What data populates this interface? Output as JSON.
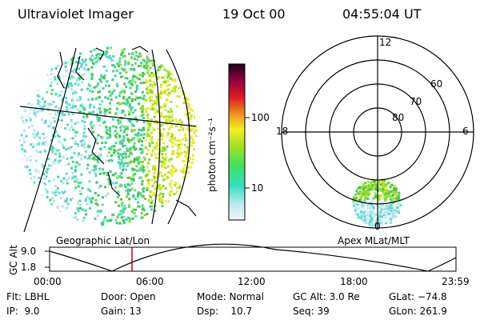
{
  "header": {
    "title": "Ultraviolet Imager",
    "date": "19 Oct 00",
    "time": "04:55:04 UT"
  },
  "colorbar": {
    "unit_label": "photon cm⁻²s⁻¹",
    "ticks": [
      "100",
      "10"
    ]
  },
  "polar": {
    "mlt_labels": {
      "top": "12",
      "left": "18",
      "right": "6",
      "bottom": "0"
    },
    "lat_labels": [
      "60",
      "70",
      "80"
    ]
  },
  "panel_labels": {
    "left": "Geographic Lat/Lon",
    "right": "Apex MLat/MLT"
  },
  "altitude_plot": {
    "ylabel": "GC Alt",
    "yticks": [
      "9.0",
      "1.8"
    ],
    "xticks": [
      "00:00",
      "06:00",
      "12:00",
      "18:00",
      "23:59"
    ],
    "marker_color": "#d00000"
  },
  "info": {
    "row1": {
      "flt": "Flt: LBHL",
      "door": "Door: Open",
      "mode": "Mode: Normal",
      "gcalt": "GC Alt: 3.0 Re",
      "glat": "GLat: −74.8"
    },
    "row2": {
      "ip": "IP:  9.0",
      "gain": "Gain: 13",
      "dsp": "Dsp:    10.7",
      "seq": "Seq: 39",
      "glon": "GLon: 261.9"
    }
  }
}
